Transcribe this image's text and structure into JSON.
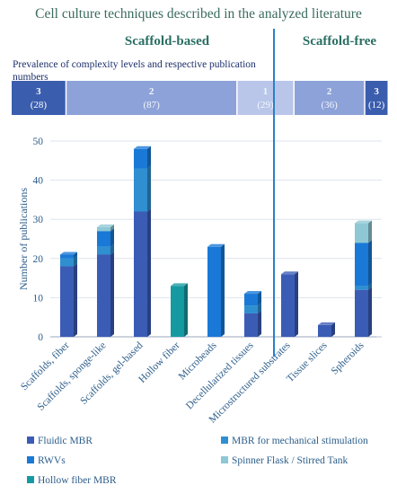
{
  "title": "Cell culture techniques described  in the analyzed literature",
  "groups": {
    "left": "Scaffold-based",
    "right": "Scaffold-free"
  },
  "prevalence_label": "Prevalence of complexity levels and respective publication numbers",
  "prevalence": [
    {
      "level": "3",
      "count": "(28)",
      "color": "#3a5dae"
    },
    {
      "level": "2",
      "count": "(87)",
      "color": "#8da2d8"
    },
    {
      "level": "1",
      "count": "(29)",
      "color": "#b9c6ea"
    },
    {
      "level": "2",
      "count": "(36)",
      "color": "#8da2d8"
    },
    {
      "level": "3",
      "count": "(12)",
      "color": "#3a5dae"
    }
  ],
  "chart_data": {
    "type": "bar",
    "stacked": true,
    "style": "3d-columns",
    "ylabel": "Number of publications",
    "ylim": [
      0,
      50
    ],
    "yticks": [
      0,
      10,
      20,
      30,
      40,
      50
    ],
    "grid": true,
    "legend_position": "bottom",
    "categories": [
      "Scaffolds, fiber",
      "Scaffolds, sponge-like",
      "Scaffolds, gel-based",
      "Hollow fiber",
      "Microbeads",
      "Decellularized tissues",
      "Microstructured substrates",
      "Tissue slices",
      "Spheroids"
    ],
    "series": [
      {
        "name": "Fluidic MBR",
        "color": "#3b5cb5",
        "values": [
          18,
          21,
          32,
          0,
          0,
          6,
          16,
          3,
          12
        ]
      },
      {
        "name": "MBR for mechanical stimulation",
        "color": "#2f8fd0",
        "values": [
          2,
          2,
          11,
          0,
          0,
          2,
          0,
          0,
          1
        ]
      },
      {
        "name": "RWVs",
        "color": "#1a79d6",
        "values": [
          1,
          4,
          5,
          0,
          23,
          3,
          0,
          0,
          11
        ]
      },
      {
        "name": "Spinner Flask / Stirred Tank",
        "color": "#8ec8d4",
        "values": [
          0,
          1,
          0,
          0,
          0,
          0,
          0,
          0,
          5
        ]
      },
      {
        "name": "Hollow fiber MBR",
        "color": "#169aa2",
        "values": [
          0,
          0,
          0,
          13,
          0,
          0,
          0,
          0,
          0
        ]
      }
    ]
  }
}
